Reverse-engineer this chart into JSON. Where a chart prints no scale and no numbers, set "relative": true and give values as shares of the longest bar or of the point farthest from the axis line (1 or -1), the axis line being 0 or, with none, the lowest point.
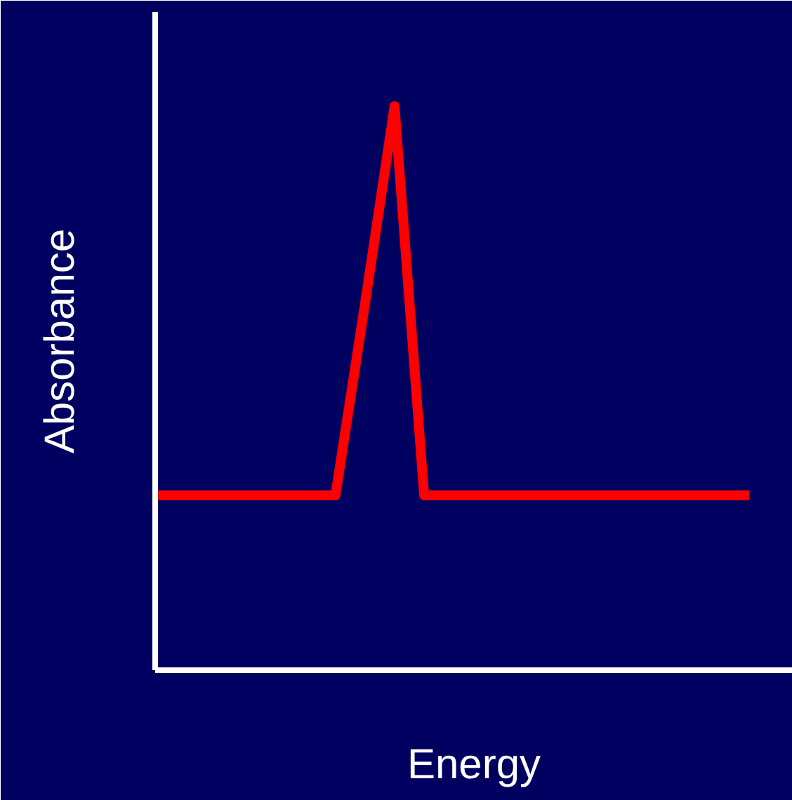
{
  "chart_data": {
    "type": "line",
    "xlabel": "Energy",
    "ylabel": "Absorbance",
    "relative": true,
    "categories": [
      null,
      null,
      null,
      null,
      null,
      null,
      null,
      null,
      null,
      null,
      null,
      null,
      null,
      null,
      null,
      null,
      null,
      null,
      null,
      null,
      null
    ],
    "series": [
      {
        "color": "#ff0000",
        "values": [
          0.31,
          0.31,
          0.31,
          0.31,
          0.31,
          0.31,
          0.31,
          0.65,
          1,
          0.31,
          0.31,
          0.31,
          0.31,
          0.31,
          0.31,
          0.31,
          0.31,
          0.31,
          0.31,
          0.31,
          0.31
        ]
      }
    ],
    "grid": false,
    "marker": "none",
    "line_style": "solid"
  }
}
